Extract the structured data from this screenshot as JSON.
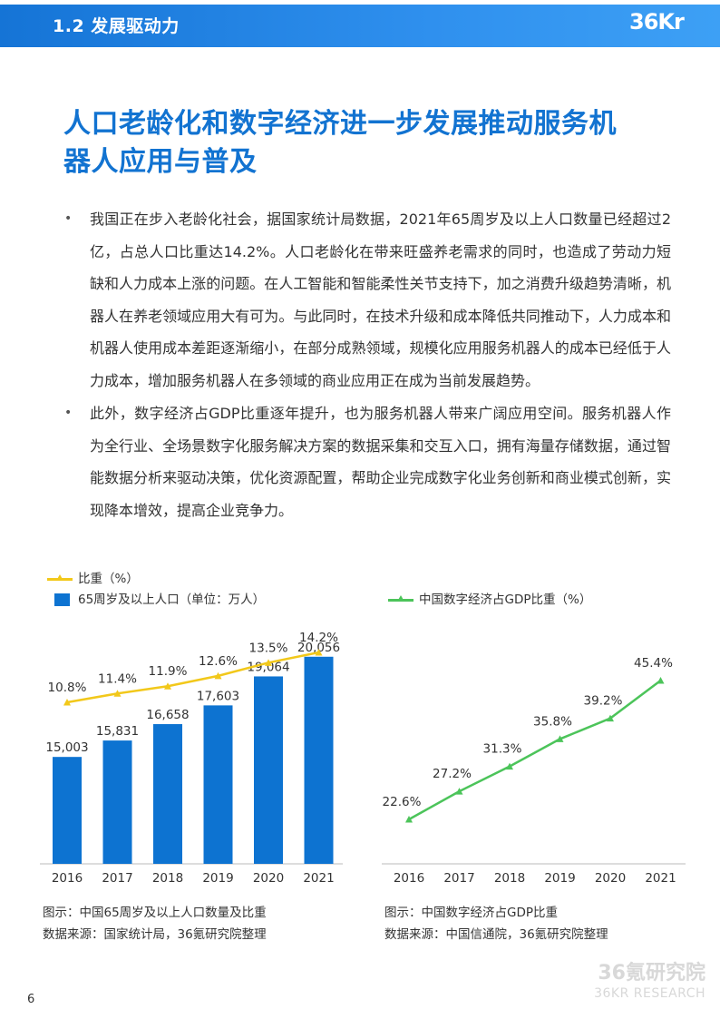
{
  "header": {
    "section_title": "1.2 发展驱动力",
    "logo_text": "36Kr",
    "accent_color": "#1a7be0"
  },
  "headline": {
    "line1": "人口老龄化和数字经济进一步发展推动服务机",
    "line2": "器人应用与普及",
    "color": "#1273d1"
  },
  "bullets": [
    "我国正在步入老龄化社会，据国家统计局数据，2021年65周岁及以上人口数量已经超过2亿，占总人口比重达14.2%。人口老龄化在带来旺盛养老需求的同时，也造成了劳动力短缺和人力成本上涨的问题。在人工智能和智能柔性关节支持下，加之消费升级趋势清晰，机器人在养老领域应用大有可为。与此同时，在技术升级和成本降低共同推动下，人力成本和机器人使用成本差距逐渐缩小，在部分成熟领域，规模化应用服务机器人的成本已经低于人力成本，增加服务机器人在多领域的商业应用正在成为当前发展趋势。",
    "此外，数字经济占GDP比重逐年提升，也为服务机器人带来广阔应用空间。服务机器人作为全行业、全场景数字化服务解决方案的数据采集和交互入口，拥有海量存储数据，通过智能数据分析来驱动决策，优化资源配置，帮助企业完成数字化业务创新和商业模式创新，实现降本增效，提高企业竞争力。"
  ],
  "chart_data": [
    {
      "type": "bar",
      "categories": [
        "2016",
        "2017",
        "2018",
        "2019",
        "2020",
        "2021"
      ],
      "series": [
        {
          "name": "65周岁及以上人口（单位：万人）",
          "type": "bar",
          "values": [
            15003,
            15831,
            16658,
            17603,
            19064,
            20056
          ],
          "labels": [
            "15,003",
            "15,831",
            "16,658",
            "17,603",
            "19,064",
            "20,056"
          ],
          "color": "#0d73d1"
        },
        {
          "name": "比重（%）",
          "type": "line",
          "values": [
            10.8,
            11.4,
            11.9,
            12.6,
            13.5,
            14.2
          ],
          "labels": [
            "10.8%",
            "11.4%",
            "11.9%",
            "12.6%",
            "13.5%",
            "14.2%"
          ],
          "color": "#f2c81a"
        }
      ],
      "caption": "图示：中国65周岁及以上人口数量及比重",
      "source": "数据来源：国家统计局，36氪研究院整理"
    },
    {
      "type": "line",
      "categories": [
        "2016",
        "2017",
        "2018",
        "2019",
        "2020",
        "2021"
      ],
      "series": [
        {
          "name": "中国数字经济占GDP比重（%）",
          "values": [
            22.6,
            27.2,
            31.3,
            35.8,
            39.2,
            45.4
          ],
          "labels": [
            "22.6%",
            "27.2%",
            "31.3%",
            "35.8%",
            "39.2%",
            "45.4%"
          ],
          "color": "#4cc45a"
        }
      ],
      "caption": "图示：中国数字经济占GDP比重",
      "source": "数据来源：中国信通院，36氪研究院整理"
    }
  ],
  "footer": {
    "watermark_cn": "36氪研究院",
    "watermark_en": "36KR RESEARCH",
    "page_number": "6"
  }
}
